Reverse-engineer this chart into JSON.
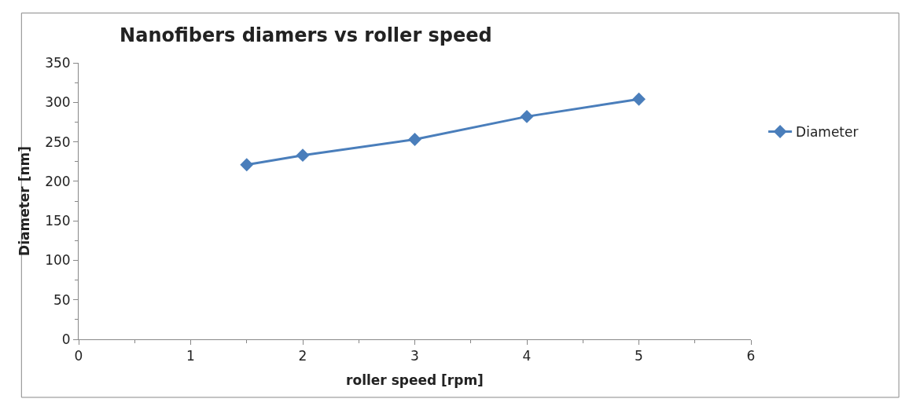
{
  "chart_data": {
    "type": "line",
    "title": "Nanofibers diamers vs roller speed",
    "xlabel": "roller speed [rpm]",
    "ylabel": "Diameter [nm]",
    "x": [
      1.5,
      2,
      3,
      4,
      5
    ],
    "series": [
      {
        "name": "Diameter",
        "color": "#4a7ebb",
        "values": [
          221,
          233,
          253,
          282,
          304
        ]
      }
    ],
    "xlim": [
      0,
      6
    ],
    "xticks": [
      0,
      1,
      2,
      3,
      4,
      5,
      6
    ],
    "ylim": [
      0,
      350
    ],
    "yticks": [
      0,
      50,
      100,
      150,
      200,
      250,
      300,
      350
    ],
    "legend": "right",
    "marker": "diamond",
    "line_style": "solid"
  }
}
